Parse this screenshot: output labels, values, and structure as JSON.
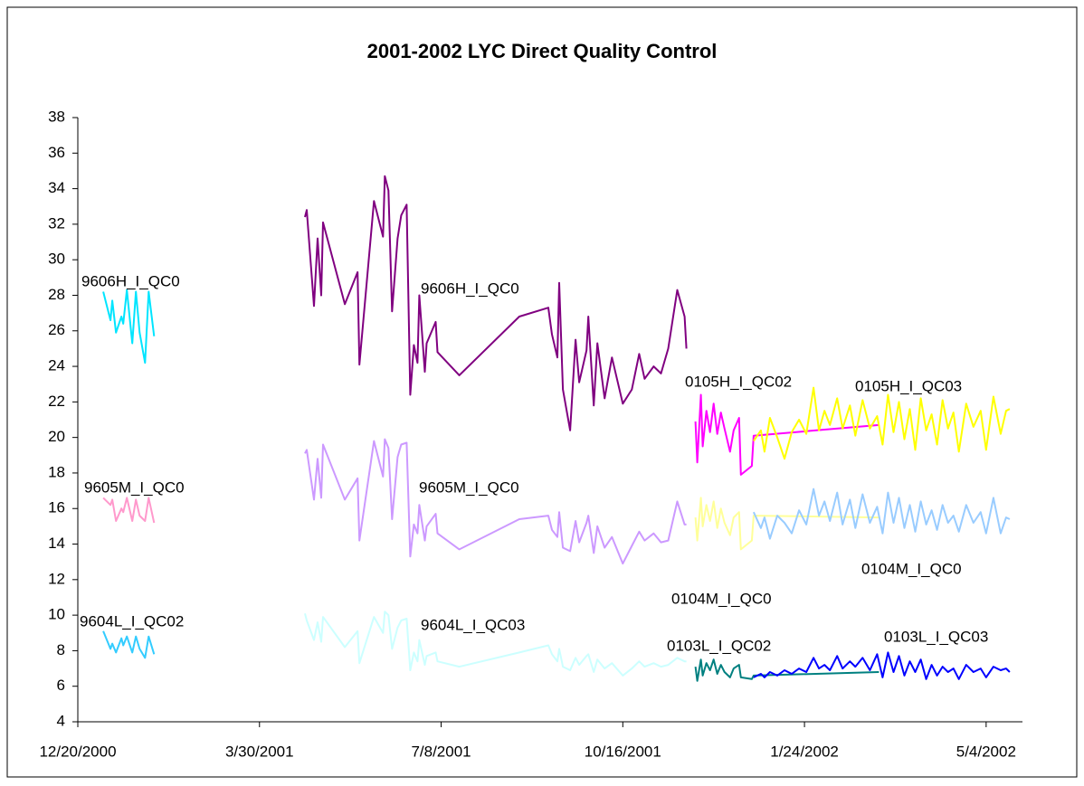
{
  "chart_data": {
    "type": "line",
    "title": "2001-2002 LYC Direct Quality Control",
    "xlim": [
      "2000-12-20",
      "2002-05-24"
    ],
    "xticks": [
      {
        "value": "2000-12-20",
        "label": "12/20/2000"
      },
      {
        "value": "2001-03-30",
        "label": "3/30/2001"
      },
      {
        "value": "2001-07-08",
        "label": "7/8/2001"
      },
      {
        "value": "2001-10-16",
        "label": "10/16/2001"
      },
      {
        "value": "2002-01-24",
        "label": "1/24/2002"
      },
      {
        "value": "2002-05-04",
        "label": "5/4/2002"
      }
    ],
    "ylim": [
      4,
      38
    ],
    "yticks": [
      4,
      6,
      8,
      10,
      12,
      14,
      16,
      18,
      20,
      22,
      24,
      26,
      28,
      30,
      32,
      34,
      36,
      38
    ],
    "series": [
      {
        "name": "9606H_I_QC0",
        "color": "#00e5ff",
        "x": [
          "2001-01-03",
          "2001-01-07",
          "2001-01-08",
          "2001-01-10",
          "2001-01-13",
          "2001-01-14",
          "2001-01-16",
          "2001-01-19",
          "2001-01-21",
          "2001-01-23",
          "2001-01-26",
          "2001-01-28",
          "2001-01-31"
        ],
        "values": [
          28.2,
          26.6,
          27.7,
          25.9,
          26.8,
          26.4,
          28.3,
          25.3,
          28.2,
          25.9,
          24.2,
          28.2,
          25.7
        ]
      },
      {
        "name": "9606H_I_QC0",
        "color": "#800080",
        "x": [
          "2001-04-24",
          "2001-04-25",
          "2001-04-29",
          "2001-05-01",
          "2001-05-03",
          "2001-05-04",
          "2001-05-16",
          "2001-05-23",
          "2001-05-24",
          "2001-06-01",
          "2001-06-06",
          "2001-06-07",
          "2001-06-09",
          "2001-06-11",
          "2001-06-14",
          "2001-06-16",
          "2001-06-19",
          "2001-06-21",
          "2001-06-23",
          "2001-06-25",
          "2001-06-26",
          "2001-06-29",
          "2001-06-30",
          "2001-07-05",
          "2001-07-06",
          "2001-07-18",
          "2001-08-20",
          "2001-09-05",
          "2001-09-07",
          "2001-09-10",
          "2001-09-11",
          "2001-09-13",
          "2001-09-17",
          "2001-09-20",
          "2001-09-22",
          "2001-09-26",
          "2001-09-27",
          "2001-09-30",
          "2001-10-02",
          "2001-10-06",
          "2001-10-10",
          "2001-10-16",
          "2001-10-21",
          "2001-10-25",
          "2001-10-28",
          "2001-11-02",
          "2001-11-06",
          "2001-11-10",
          "2001-11-15",
          "2001-11-19",
          "2001-11-20"
        ],
        "values": [
          32.4,
          32.8,
          27.4,
          31.2,
          28,
          32.1,
          27.5,
          29.3,
          24.1,
          33.3,
          31.3,
          34.7,
          33.9,
          27.1,
          31.2,
          32.5,
          33.1,
          22.4,
          25.2,
          24.2,
          28,
          23.7,
          25.3,
          26.5,
          24.8,
          23.5,
          26.8,
          27.3,
          25.8,
          24.5,
          28.7,
          22.7,
          20.4,
          25.5,
          23.1,
          24.9,
          26.8,
          21.8,
          25.3,
          22.2,
          24.5,
          21.9,
          22.7,
          24.7,
          23.3,
          24,
          23.6,
          25,
          28.3,
          26.8,
          25
        ]
      },
      {
        "name": "0105H_I_QC02",
        "color": "#ff00ff",
        "x": [
          "2001-11-25",
          "2001-11-26",
          "2001-11-28",
          "2001-11-29",
          "2001-12-01",
          "2001-12-03",
          "2001-12-05",
          "2001-12-07",
          "2001-12-09",
          "2001-12-11",
          "2001-12-14",
          "2001-12-16",
          "2001-12-19",
          "2001-12-20",
          "2001-12-26",
          "2001-12-27",
          "2002-03-06"
        ],
        "values": [
          20.9,
          18.6,
          22.4,
          19.5,
          21.5,
          20.3,
          21.9,
          20.2,
          21.4,
          20.5,
          19.2,
          20.4,
          21.1,
          17.9,
          18.4,
          20.1,
          20.7
        ]
      },
      {
        "name": "0105H_I_QC03",
        "color": "#ffff00",
        "x": [
          "2001-12-27",
          "2001-12-31",
          "2002-01-02",
          "2002-01-05",
          "2002-01-09",
          "2002-01-13",
          "2002-01-17",
          "2002-01-21",
          "2002-01-25",
          "2002-01-29",
          "2002-02-01",
          "2002-02-04",
          "2002-02-07",
          "2002-02-11",
          "2002-02-14",
          "2002-02-18",
          "2002-02-21",
          "2002-02-25",
          "2002-03-01",
          "2002-03-05",
          "2002-03-08",
          "2002-03-11",
          "2002-03-14",
          "2002-03-17",
          "2002-03-20",
          "2002-03-23",
          "2002-03-26",
          "2002-03-29",
          "2002-04-01",
          "2002-04-04",
          "2002-04-07",
          "2002-04-10",
          "2002-04-13",
          "2002-04-16",
          "2002-04-19",
          "2002-04-23",
          "2002-04-27",
          "2002-05-01",
          "2002-05-04",
          "2002-05-08",
          "2002-05-12",
          "2002-05-15",
          "2002-05-17"
        ],
        "values": [
          19.8,
          20.4,
          19.2,
          21.1,
          20,
          18.8,
          20.3,
          21,
          20.2,
          22.8,
          20.4,
          21.5,
          20.7,
          22.2,
          20.5,
          21.8,
          20.1,
          22.1,
          20.5,
          21.2,
          19.6,
          22.4,
          20.3,
          22,
          19.9,
          21.6,
          19.3,
          22.2,
          20.4,
          21.3,
          19.6,
          22.1,
          20.5,
          21.4,
          19.2,
          21.9,
          20.6,
          21.5,
          19.3,
          22.3,
          20.2,
          21.5,
          21.6
        ]
      },
      {
        "name": "9605M_I_QC0",
        "color": "#ff99cc",
        "x": [
          "2001-01-03",
          "2001-01-07",
          "2001-01-08",
          "2001-01-10",
          "2001-01-13",
          "2001-01-14",
          "2001-01-16",
          "2001-01-19",
          "2001-01-21",
          "2001-01-23",
          "2001-01-26",
          "2001-01-28",
          "2001-01-31"
        ],
        "values": [
          16.6,
          16.2,
          16.5,
          15.3,
          16,
          15.8,
          16.6,
          15.3,
          16.5,
          15.6,
          15.3,
          16.6,
          15.2
        ]
      },
      {
        "name": "9605M_I_QC0",
        "color": "#cc99ff",
        "x": [
          "2001-04-24",
          "2001-04-25",
          "2001-04-29",
          "2001-05-01",
          "2001-05-03",
          "2001-05-04",
          "2001-05-16",
          "2001-05-23",
          "2001-05-24",
          "2001-06-01",
          "2001-06-06",
          "2001-06-07",
          "2001-06-09",
          "2001-06-11",
          "2001-06-14",
          "2001-06-16",
          "2001-06-19",
          "2001-06-21",
          "2001-06-23",
          "2001-06-25",
          "2001-06-26",
          "2001-06-29",
          "2001-06-30",
          "2001-07-05",
          "2001-07-06",
          "2001-07-18",
          "2001-08-20",
          "2001-09-05",
          "2001-09-07",
          "2001-09-10",
          "2001-09-11",
          "2001-09-13",
          "2001-09-17",
          "2001-09-20",
          "2001-09-22",
          "2001-09-26",
          "2001-09-27",
          "2001-09-30",
          "2001-10-02",
          "2001-10-06",
          "2001-10-10",
          "2001-10-16",
          "2001-10-21",
          "2001-10-25",
          "2001-10-28",
          "2001-11-02",
          "2001-11-06",
          "2001-11-10",
          "2001-11-15",
          "2001-11-19",
          "2001-11-20"
        ],
        "values": [
          19.1,
          19.3,
          16.5,
          18.8,
          16.6,
          19.6,
          16.5,
          17.7,
          14.2,
          19.8,
          17.8,
          19.9,
          19.4,
          15.4,
          18.9,
          19.6,
          19.7,
          13.3,
          15.1,
          14.6,
          16.2,
          14.2,
          15,
          15.7,
          14.6,
          13.7,
          15.4,
          15.6,
          14.8,
          14.4,
          15.8,
          13.8,
          13.6,
          15.3,
          14.1,
          15.2,
          15.6,
          13.5,
          15,
          13.8,
          14.4,
          12.9,
          13.9,
          14.7,
          14.2,
          14.6,
          14.1,
          14.2,
          16.4,
          15.1,
          15.1
        ]
      },
      {
        "name": "0104M_I_QC0",
        "color": "#ffff99",
        "x": [
          "2001-11-25",
          "2001-11-26",
          "2001-11-28",
          "2001-11-29",
          "2001-12-01",
          "2001-12-03",
          "2001-12-05",
          "2001-12-07",
          "2001-12-09",
          "2001-12-11",
          "2001-12-14",
          "2001-12-16",
          "2001-12-19",
          "2001-12-20",
          "2001-12-26",
          "2001-12-27",
          "2002-03-06"
        ],
        "values": [
          15.5,
          14.2,
          16.6,
          15,
          16.2,
          15.3,
          16.4,
          14.9,
          16,
          15.2,
          14.5,
          15.5,
          15.8,
          13.7,
          14.2,
          15.6,
          15.5
        ]
      },
      {
        "name": "0104M_I_QC0",
        "color": "#99ccff",
        "x": [
          "2001-12-27",
          "2001-12-31",
          "2002-01-02",
          "2002-01-05",
          "2002-01-09",
          "2002-01-13",
          "2002-01-17",
          "2002-01-21",
          "2002-01-25",
          "2002-01-29",
          "2002-02-01",
          "2002-02-04",
          "2002-02-07",
          "2002-02-11",
          "2002-02-14",
          "2002-02-18",
          "2002-02-21",
          "2002-02-25",
          "2002-03-01",
          "2002-03-05",
          "2002-03-08",
          "2002-03-11",
          "2002-03-14",
          "2002-03-17",
          "2002-03-20",
          "2002-03-23",
          "2002-03-26",
          "2002-03-29",
          "2002-04-01",
          "2002-04-04",
          "2002-04-07",
          "2002-04-10",
          "2002-04-13",
          "2002-04-16",
          "2002-04-19",
          "2002-04-23",
          "2002-04-27",
          "2002-05-01",
          "2002-05-04",
          "2002-05-08",
          "2002-05-12",
          "2002-05-15",
          "2002-05-17"
        ],
        "values": [
          15.8,
          14.9,
          15.5,
          14.3,
          15.6,
          15.2,
          14.6,
          15.9,
          15.1,
          17.1,
          15.6,
          16.4,
          15.3,
          16.9,
          15.1,
          16.5,
          14.9,
          16.8,
          15.2,
          16.1,
          14.6,
          16.9,
          15.2,
          16.6,
          14.9,
          16.2,
          14.7,
          16.4,
          15.1,
          15.9,
          14.8,
          16.2,
          15.2,
          15.6,
          14.7,
          16.2,
          15.2,
          15.8,
          14.6,
          16.6,
          14.6,
          15.5,
          15.4
        ]
      },
      {
        "name": "9604L_I_QC02",
        "color": "#33ccff",
        "x": [
          "2001-01-03",
          "2001-01-07",
          "2001-01-08",
          "2001-01-10",
          "2001-01-13",
          "2001-01-14",
          "2001-01-16",
          "2001-01-19",
          "2001-01-21",
          "2001-01-23",
          "2001-01-26",
          "2001-01-28",
          "2001-01-31"
        ],
        "values": [
          9.1,
          8.1,
          8.4,
          7.9,
          8.7,
          8.3,
          8.8,
          7.9,
          8.8,
          8.1,
          7.6,
          8.8,
          7.8
        ]
      },
      {
        "name": "9604L_I_QC03",
        "color": "#ccffff",
        "x": [
          "2001-04-24",
          "2001-04-25",
          "2001-04-29",
          "2001-05-01",
          "2001-05-03",
          "2001-05-04",
          "2001-05-16",
          "2001-05-23",
          "2001-05-24",
          "2001-06-01",
          "2001-06-06",
          "2001-06-07",
          "2001-06-09",
          "2001-06-11",
          "2001-06-14",
          "2001-06-16",
          "2001-06-19",
          "2001-06-21",
          "2001-06-23",
          "2001-06-25",
          "2001-06-26",
          "2001-06-29",
          "2001-06-30",
          "2001-07-05",
          "2001-07-06",
          "2001-07-18",
          "2001-08-20",
          "2001-09-05",
          "2001-09-07",
          "2001-09-10",
          "2001-09-11",
          "2001-09-13",
          "2001-09-17",
          "2001-09-20",
          "2001-09-22",
          "2001-09-26",
          "2001-09-27",
          "2001-09-30",
          "2001-10-02",
          "2001-10-06",
          "2001-10-10",
          "2001-10-16",
          "2001-10-21",
          "2001-10-25",
          "2001-10-28",
          "2001-11-02",
          "2001-11-06",
          "2001-11-10",
          "2001-11-15",
          "2001-11-19",
          "2001-11-20"
        ],
        "values": [
          10.1,
          9.7,
          8.6,
          9.6,
          8.5,
          9.9,
          8.2,
          9.1,
          7.3,
          9.9,
          9,
          10.2,
          10,
          8.1,
          9.3,
          9.7,
          9.8,
          6.9,
          7.9,
          7.4,
          8.6,
          7.2,
          7.7,
          7.9,
          7.4,
          7.1,
          7.9,
          8.3,
          7.8,
          7.4,
          8.1,
          7.1,
          6.9,
          7.6,
          7.2,
          7.7,
          7.8,
          6.8,
          7.5,
          7,
          7.3,
          6.6,
          7,
          7.4,
          7.1,
          7.3,
          7.1,
          7.2,
          7.6,
          7.4,
          7.4
        ]
      },
      {
        "name": "0103L_I_QC02",
        "color": "#008080",
        "x": [
          "2001-11-25",
          "2001-11-26",
          "2001-11-28",
          "2001-11-29",
          "2001-12-01",
          "2001-12-03",
          "2001-12-05",
          "2001-12-07",
          "2001-12-09",
          "2001-12-11",
          "2001-12-14",
          "2001-12-16",
          "2001-12-19",
          "2001-12-20",
          "2001-12-26",
          "2001-12-27",
          "2002-03-06"
        ],
        "values": [
          7.1,
          6.3,
          7.5,
          6.6,
          7.3,
          6.9,
          7.5,
          6.7,
          7.2,
          6.8,
          6.5,
          7,
          7.2,
          6.5,
          6.4,
          6.6,
          6.8
        ]
      },
      {
        "name": "0103L_I_QC03",
        "color": "#0000ff",
        "x": [
          "2001-12-27",
          "2001-12-31",
          "2002-01-02",
          "2002-01-05",
          "2002-01-09",
          "2002-01-13",
          "2002-01-17",
          "2002-01-21",
          "2002-01-25",
          "2002-01-29",
          "2002-02-01",
          "2002-02-04",
          "2002-02-07",
          "2002-02-11",
          "2002-02-14",
          "2002-02-18",
          "2002-02-21",
          "2002-02-25",
          "2002-03-01",
          "2002-03-05",
          "2002-03-08",
          "2002-03-11",
          "2002-03-14",
          "2002-03-17",
          "2002-03-20",
          "2002-03-23",
          "2002-03-26",
          "2002-03-29",
          "2002-04-01",
          "2002-04-04",
          "2002-04-07",
          "2002-04-10",
          "2002-04-13",
          "2002-04-16",
          "2002-04-19",
          "2002-04-23",
          "2002-04-27",
          "2002-05-01",
          "2002-05-04",
          "2002-05-08",
          "2002-05-12",
          "2002-05-15",
          "2002-05-17"
        ],
        "values": [
          6.5,
          6.7,
          6.5,
          6.8,
          6.6,
          6.9,
          6.7,
          7,
          6.8,
          7.6,
          7,
          7.2,
          6.9,
          7.7,
          7,
          7.4,
          7.1,
          7.6,
          6.9,
          7.8,
          6.5,
          7.9,
          6.8,
          7.7,
          6.6,
          7.4,
          6.8,
          7.5,
          6.4,
          7.2,
          6.6,
          7.1,
          6.8,
          7,
          6.4,
          7.2,
          6.8,
          7,
          6.5,
          7.1,
          6.9,
          7,
          6.8
        ]
      }
    ]
  }
}
